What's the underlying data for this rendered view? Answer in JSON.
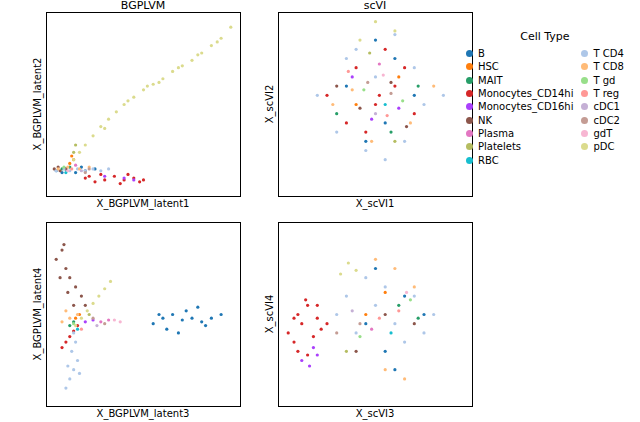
{
  "legend_title": "Cell Type",
  "cell_types": [
    {
      "name": "B",
      "color": "#1f77b4"
    },
    {
      "name": "HSC",
      "color": "#ff7f0e"
    },
    {
      "name": "MAIT",
      "color": "#279e68"
    },
    {
      "name": "Monocytes_CD14hi",
      "color": "#d62728"
    },
    {
      "name": "Monocytes_CD16hi",
      "color": "#aa40fc"
    },
    {
      "name": "NK",
      "color": "#8c564b"
    },
    {
      "name": "Plasma",
      "color": "#e377c2"
    },
    {
      "name": "Platelets",
      "color": "#b5bd61"
    },
    {
      "name": "RBC",
      "color": "#17becf"
    },
    {
      "name": "T CD4",
      "color": "#aec7e8"
    },
    {
      "name": "T CD8",
      "color": "#ffbb78"
    },
    {
      "name": "T gd",
      "color": "#98df8a"
    },
    {
      "name": "T reg",
      "color": "#ff9896"
    },
    {
      "name": "cDC1",
      "color": "#c5b0d5"
    },
    {
      "name": "cDC2",
      "color": "#c49c94"
    },
    {
      "name": "gdT",
      "color": "#f7b6d2"
    },
    {
      "name": "pDC",
      "color": "#dbdb8d"
    }
  ],
  "chart_data": [
    {
      "type": "scatter",
      "title": "BGPLVM",
      "x_label": "X_BGPLVM_latent1",
      "y_label": "X_BGPLVM_latent2",
      "xlim": [
        0,
        100
      ],
      "ylim": [
        0,
        100
      ],
      "tick_labels": false,
      "marker": "circle",
      "series": [
        {
          "name": "B",
          "x": [
            5,
            10,
            15,
            20,
            25,
            8,
            18
          ],
          "y": [
            14,
            15,
            13,
            14,
            15,
            13,
            16
          ]
        },
        {
          "name": "HSC",
          "x": [
            12,
            14,
            13
          ],
          "y": [
            18,
            20,
            22
          ]
        },
        {
          "name": "MAIT",
          "x": [
            8,
            12
          ],
          "y": [
            15,
            16
          ]
        },
        {
          "name": "Monocytes_CD14hi",
          "x": [
            20,
            25,
            30,
            35,
            40,
            45,
            50,
            28,
            38,
            48,
            22,
            42
          ],
          "y": [
            10,
            8,
            9,
            11,
            9,
            10,
            9,
            12,
            7,
            8,
            11,
            12
          ]
        },
        {
          "name": "Monocytes_CD16hi",
          "x": [
            30,
            40,
            45
          ],
          "y": [
            11,
            10,
            9
          ]
        },
        {
          "name": "NK",
          "x": [
            4,
            7,
            10,
            6
          ],
          "y": [
            15,
            14,
            15,
            16
          ]
        },
        {
          "name": "Plasma",
          "x": [
            15
          ],
          "y": [
            17
          ]
        },
        {
          "name": "Platelets",
          "x": [
            14,
            15
          ],
          "y": [
            24,
            28
          ]
        },
        {
          "name": "RBC",
          "x": [
            10
          ],
          "y": [
            13
          ]
        },
        {
          "name": "T CD4",
          "x": [
            5,
            9,
            12,
            16,
            20,
            24,
            28,
            32
          ],
          "y": [
            14,
            15,
            14,
            15,
            14,
            15,
            14,
            15
          ]
        },
        {
          "name": "T CD8",
          "x": [
            6,
            11,
            17,
            22
          ],
          "y": [
            15,
            16,
            15,
            16
          ]
        },
        {
          "name": "T gd",
          "x": [
            9
          ],
          "y": [
            16
          ]
        },
        {
          "name": "T reg",
          "x": [
            13
          ],
          "y": [
            15
          ]
        },
        {
          "name": "cDC1",
          "x": [
            18
          ],
          "y": [
            14
          ]
        },
        {
          "name": "cDC2",
          "x": [
            20,
            22
          ],
          "y": [
            13,
            15
          ]
        },
        {
          "name": "gdT",
          "x": [
            11
          ],
          "y": [
            14
          ]
        },
        {
          "name": "pDC",
          "x": [
            14,
            17,
            20,
            24,
            28,
            32,
            36,
            40,
            45,
            50,
            55,
            60,
            65,
            70,
            75,
            80,
            85,
            90,
            95,
            30,
            42,
            58,
            68,
            78,
            88,
            52
          ],
          "y": [
            20,
            24,
            28,
            33,
            38,
            42,
            46,
            50,
            54,
            58,
            61,
            64,
            68,
            71,
            74,
            78,
            82,
            86,
            92,
            37,
            52,
            62,
            70,
            77,
            84,
            60
          ]
        }
      ]
    },
    {
      "type": "scatter",
      "title": "scVI",
      "x_label": "X_scVI1",
      "y_label": "X_scVI2",
      "xlim": [
        0,
        100
      ],
      "ylim": [
        0,
        100
      ],
      "tick_labels": false,
      "marker": "circle",
      "series": [
        {
          "name": "B",
          "x": [
            35,
            55,
            60,
            45,
            70,
            50
          ],
          "y": [
            60,
            40,
            75,
            30,
            55,
            85
          ]
        },
        {
          "name": "HSC",
          "x": [
            40,
            62
          ],
          "y": [
            50,
            65
          ]
        },
        {
          "name": "MAIT",
          "x": [
            30,
            58,
            72
          ],
          "y": [
            45,
            35,
            60
          ]
        },
        {
          "name": "Monocytes_CD14hi",
          "x": [
            25,
            40,
            50,
            60,
            70,
            45,
            35,
            55,
            65,
            52
          ],
          "y": [
            55,
            70,
            50,
            60,
            45,
            35,
            40,
            80,
            70,
            55
          ]
        },
        {
          "name": "Monocytes_CD16hi",
          "x": [
            38,
            62,
            48
          ],
          "y": [
            65,
            48,
            42
          ]
        },
        {
          "name": "NK",
          "x": [
            42,
            58,
            66,
            30
          ],
          "y": [
            48,
            62,
            38,
            60
          ]
        },
        {
          "name": "Plasma",
          "x": [
            52
          ],
          "y": [
            72
          ]
        },
        {
          "name": "Platelets",
          "x": [
            47,
            60
          ],
          "y": [
            78,
            30
          ]
        },
        {
          "name": "RBC",
          "x": [
            55
          ],
          "y": [
            50
          ]
        },
        {
          "name": "T CD4",
          "x": [
            20,
            30,
            45,
            55,
            65,
            75,
            85,
            40,
            60,
            50,
            35,
            70
          ],
          "y": [
            55,
            35,
            25,
            20,
            30,
            50,
            55,
            80,
            88,
            65,
            75,
            70
          ]
        },
        {
          "name": "T CD8",
          "x": [
            28,
            48,
            68,
            80,
            38
          ],
          "y": [
            50,
            30,
            40,
            60,
            58
          ]
        },
        {
          "name": "T gd",
          "x": [
            44,
            64
          ],
          "y": [
            58,
            52
          ]
        },
        {
          "name": "T reg",
          "x": [
            36,
            56
          ],
          "y": [
            68,
            44
          ]
        },
        {
          "name": "cDC1",
          "x": [
            50
          ],
          "y": [
            45
          ]
        },
        {
          "name": "cDC2",
          "x": [
            46,
            58
          ],
          "y": [
            62,
            56
          ]
        },
        {
          "name": "gdT",
          "x": [
            54
          ],
          "y": [
            66
          ]
        },
        {
          "name": "pDC",
          "x": [
            42,
            60,
            50
          ],
          "y": [
            85,
            90,
            95
          ]
        }
      ]
    },
    {
      "type": "scatter",
      "x_label": "X_BGPLVM_latent3",
      "y_label": "X_BGPLVM_latent4",
      "xlim": [
        0,
        100
      ],
      "ylim": [
        0,
        100
      ],
      "tick_labels": false,
      "marker": "circle",
      "series": [
        {
          "name": "B",
          "x": [
            55,
            60,
            65,
            70,
            75,
            80,
            85,
            90,
            62,
            72,
            82,
            68,
            78,
            58
          ],
          "y": [
            45,
            48,
            50,
            47,
            48,
            46,
            48,
            50,
            42,
            52,
            44,
            40,
            54,
            50
          ]
        },
        {
          "name": "HSC",
          "x": [
            15,
            17
          ],
          "y": [
            48,
            50
          ]
        },
        {
          "name": "MAIT",
          "x": [
            12,
            14
          ],
          "y": [
            44,
            46
          ]
        },
        {
          "name": "Monocytes_CD14hi",
          "x": [
            8,
            10,
            12,
            14,
            16
          ],
          "y": [
            32,
            35,
            38,
            41,
            44
          ]
        },
        {
          "name": "Monocytes_CD16hi",
          "x": [
            20,
            24
          ],
          "y": [
            46,
            47
          ]
        },
        {
          "name": "NK",
          "x": [
            5,
            8,
            10,
            12,
            15,
            18,
            7,
            11,
            14,
            20,
            9
          ],
          "y": [
            80,
            85,
            75,
            70,
            65,
            60,
            70,
            62,
            55,
            55,
            88
          ]
        },
        {
          "name": "Plasma",
          "x": [
            28,
            32
          ],
          "y": [
            46,
            47
          ]
        },
        {
          "name": "Platelets",
          "x": [
            22
          ],
          "y": [
            50
          ]
        },
        {
          "name": "RBC",
          "x": [
            16
          ],
          "y": [
            42
          ]
        },
        {
          "name": "T CD4",
          "x": [
            10,
            12,
            14,
            16,
            13,
            15,
            11,
            17,
            14
          ],
          "y": [
            10,
            15,
            20,
            25,
            30,
            35,
            22,
            18,
            40
          ]
        },
        {
          "name": "T CD8",
          "x": [
            8,
            12,
            16,
            10
          ],
          "y": [
            46,
            48,
            50,
            52
          ]
        },
        {
          "name": "T gd",
          "x": [
            14
          ],
          "y": [
            45
          ]
        },
        {
          "name": "T reg",
          "x": [
            18
          ],
          "y": [
            42
          ]
        },
        {
          "name": "cDC1",
          "x": [
            26
          ],
          "y": [
            44
          ]
        },
        {
          "name": "cDC2",
          "x": [
            24,
            30
          ],
          "y": [
            48,
            45
          ]
        },
        {
          "name": "gdT",
          "x": [
            35,
            38
          ],
          "y": [
            47,
            46
          ]
        },
        {
          "name": "pDC",
          "x": [
            15,
            18,
            21,
            24,
            27,
            30,
            33
          ],
          "y": [
            44,
            48,
            52,
            56,
            60,
            64,
            68
          ]
        }
      ]
    },
    {
      "type": "scatter",
      "x_label": "X_scVI3",
      "y_label": "X_scVI4",
      "xlim": [
        0,
        100
      ],
      "ylim": [
        0,
        100
      ],
      "tick_labels": false,
      "marker": "circle",
      "series": [
        {
          "name": "B",
          "x": [
            45,
            55,
            65,
            75,
            50,
            60
          ],
          "y": [
            45,
            30,
            60,
            50,
            75,
            20
          ]
        },
        {
          "name": "HSC",
          "x": [
            45,
            55
          ],
          "y": [
            50,
            62
          ]
        },
        {
          "name": "MAIT",
          "x": [
            62,
            72
          ],
          "y": [
            55,
            48
          ]
        },
        {
          "name": "Monocytes_CD14hi",
          "x": [
            5,
            8,
            10,
            12,
            15,
            18,
            20,
            22,
            25,
            10,
            15,
            8,
            20,
            14
          ],
          "y": [
            40,
            35,
            50,
            45,
            55,
            38,
            48,
            42,
            45,
            30,
            28,
            48,
            55,
            58
          ]
        },
        {
          "name": "Monocytes_CD16hi",
          "x": [
            12,
            16,
            20,
            18
          ],
          "y": [
            25,
            22,
            28,
            32
          ]
        },
        {
          "name": "NK",
          "x": [
            40,
            55,
            70
          ],
          "y": [
            30,
            50,
            45
          ]
        },
        {
          "name": "Plasma",
          "x": [
            48
          ],
          "y": [
            42
          ]
        },
        {
          "name": "Platelets",
          "x": [
            35
          ],
          "y": [
            30
          ]
        },
        {
          "name": "RBC",
          "x": [
            58
          ],
          "y": [
            40
          ]
        },
        {
          "name": "T CD4",
          "x": [
            30,
            40,
            50,
            60,
            70,
            80,
            45,
            55,
            65,
            75,
            35
          ],
          "y": [
            50,
            40,
            55,
            45,
            60,
            50,
            70,
            65,
            35,
            40,
            60
          ]
        },
        {
          "name": "T CD8",
          "x": [
            50,
            60,
            70,
            55,
            65
          ],
          "y": [
            80,
            75,
            65,
            20,
            15
          ]
        },
        {
          "name": "T gd",
          "x": [
            42,
            68
          ],
          "y": [
            38,
            58
          ]
        },
        {
          "name": "T reg",
          "x": [
            52,
            62
          ],
          "y": [
            48,
            52
          ]
        },
        {
          "name": "cDC1",
          "x": [
            38
          ],
          "y": [
            52
          ]
        },
        {
          "name": "cDC2",
          "x": [
            30,
            42
          ],
          "y": [
            40,
            45
          ]
        },
        {
          "name": "gdT",
          "x": [
            66
          ],
          "y": [
            62
          ]
        },
        {
          "name": "pDC",
          "x": [
            32,
            36,
            40
          ],
          "y": [
            72,
            78,
            74
          ]
        }
      ]
    }
  ]
}
